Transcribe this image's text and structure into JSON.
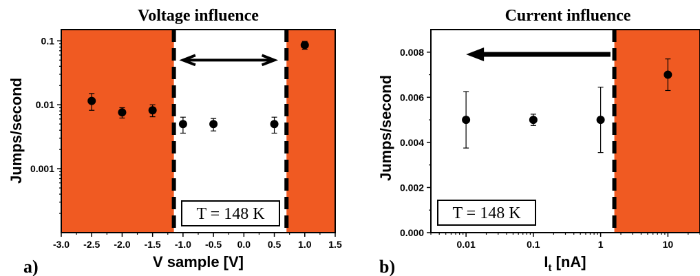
{
  "colors": {
    "region": "#f05a22",
    "marker": "#000000"
  },
  "chart_data": [
    {
      "type": "scatter",
      "panel_label": "a)",
      "title": "Voltage influence",
      "xlabel": "V sample [V]",
      "ylabel": "Jumps/second",
      "xscale": "linear",
      "yscale": "log",
      "xlim": [
        -3.0,
        1.5
      ],
      "ylim": [
        0.0001,
        0.15
      ],
      "xticks": [
        "-3.0",
        "-2.5",
        "-2.0",
        "-1.5",
        "-1.0",
        "-0.5",
        "0.0",
        "0.5",
        "1.0",
        "1.5"
      ],
      "yticks": [
        "0.001",
        "0.01",
        "0.1"
      ],
      "x": [
        -2.5,
        -2.0,
        -1.5,
        -1.0,
        -0.5,
        0.5,
        1.0
      ],
      "y": [
        0.0115,
        0.0076,
        0.0082,
        0.005,
        0.005,
        0.005,
        0.086
      ],
      "y_err_low": [
        0.0033,
        0.0014,
        0.0017,
        0.0014,
        0.0011,
        0.0014,
        0.012
      ],
      "y_err_high": [
        0.0035,
        0.0014,
        0.0018,
        0.0014,
        0.0011,
        0.0014,
        0.012
      ],
      "shaded_regions": [
        [
          -3.0,
          -1.15
        ],
        [
          0.7,
          1.5
        ]
      ],
      "dashed_lines": [
        -1.15,
        0.7
      ],
      "arrow": {
        "direction": "both",
        "x": [
          -1.0,
          0.5
        ],
        "y": 0.05
      },
      "annotation": "T = 148 K"
    },
    {
      "type": "scatter",
      "panel_label": "b)",
      "title": "Current influence",
      "xlabel": "I",
      "xlabel_sub": "t",
      "xlabel_unit": " [nA]",
      "ylabel": "Jumps/second",
      "xscale": "log",
      "yscale": "linear",
      "xlim": [
        0.003,
        30
      ],
      "ylim": [
        0.0,
        0.009
      ],
      "xticks": [
        "0.01",
        "0.1",
        "1",
        "10"
      ],
      "yticks": [
        "0.000",
        "0.002",
        "0.004",
        "0.006",
        "0.008"
      ],
      "x": [
        0.01,
        0.1,
        1,
        10
      ],
      "y": [
        0.005,
        0.005,
        0.005,
        0.007
      ],
      "y_err_low": [
        0.00125,
        0.00025,
        0.00145,
        0.0007
      ],
      "y_err_high": [
        0.00125,
        0.00025,
        0.00145,
        0.0007
      ],
      "shaded_regions": [
        [
          1.6,
          30
        ]
      ],
      "dashed_lines": [
        1.6
      ],
      "arrow": {
        "direction": "left",
        "x": [
          1.4,
          0.01
        ],
        "y": 0.0079
      },
      "annotation": "T = 148 K"
    }
  ]
}
